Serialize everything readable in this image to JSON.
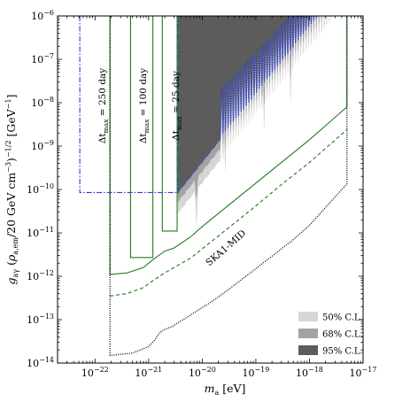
{
  "chart_data": {
    "type": "line",
    "xlabel": "m_a [eV]",
    "ylabel": "g_aγ (ρ_a,em/20 GeV cm⁻³)^−1/2 [GeV⁻¹]",
    "xscale": "log",
    "yscale": "log",
    "xlim": [
      2e-23,
      1e-17
    ],
    "ylim": [
      1e-14,
      1e-06
    ],
    "x_ticks": [
      {
        "mant": "10",
        "exp": "−22",
        "value": 1e-22
      },
      {
        "mant": "10",
        "exp": "−21",
        "value": 1e-21
      },
      {
        "mant": "10",
        "exp": "−20",
        "value": 1e-20
      },
      {
        "mant": "10",
        "exp": "−19",
        "value": 1e-19
      },
      {
        "mant": "10",
        "exp": "−18",
        "value": 1e-18
      },
      {
        "mant": "10",
        "exp": "−17",
        "value": 1e-17
      }
    ],
    "y_ticks": [
      {
        "mant": "10",
        "exp": "−14",
        "value": 1e-14
      },
      {
        "mant": "10",
        "exp": "−13",
        "value": 1e-13
      },
      {
        "mant": "10",
        "exp": "−12",
        "value": 1e-12
      },
      {
        "mant": "10",
        "exp": "−11",
        "value": 1e-11
      },
      {
        "mant": "10",
        "exp": "−10",
        "value": 1e-10
      },
      {
        "mant": "10",
        "exp": "−9",
        "value": 1e-09
      },
      {
        "mant": "10",
        "exp": "−8",
        "value": 1e-08
      },
      {
        "mant": "10",
        "exp": "−7",
        "value": 1e-07
      },
      {
        "mant": "10",
        "exp": "−6",
        "value": 1e-06
      }
    ],
    "series": [
      {
        "label": "Δt_max = 250 day",
        "style": "dashdot",
        "color": "#2b3fd6",
        "x": [
          5.2e-23,
          5.2e-23,
          3.5e-21,
          3.5e-21
        ],
        "y": [
          1e-06,
          8.5e-11,
          8.5e-11,
          1e-06
        ]
      },
      {
        "label": "Δt_max = 100 day",
        "style": "solid",
        "color": "#1e7a1e",
        "x": [
          4.6e-22,
          4.6e-22,
          1.2e-21,
          1.2e-21
        ],
        "y": [
          1e-06,
          2.7e-12,
          2.7e-12,
          1e-06
        ]
      },
      {
        "label": "Δt_max = 25 day",
        "style": "solid",
        "color": "#1e7a1e",
        "x": [
          1.8e-21,
          1.8e-21,
          3.4e-21,
          3.4e-21
        ],
        "y": [
          1e-06,
          1.1e-11,
          1.1e-11,
          1e-06
        ]
      },
      {
        "label": "Δt_max = 250 day",
        "style": "solid",
        "color": "#1e7a1e",
        "x": [
          1.9e-22,
          1.9e-22,
          4e-22,
          8e-22,
          1.3e-21,
          2e-21,
          3e-21,
          6e-21,
          1e-20,
          2e-20,
          5e-20,
          1e-19,
          3e-19,
          1e-18,
          5e-18,
          5e-18
        ],
        "y": [
          1e-06,
          1.1e-12,
          1.2e-12,
          1.6e-12,
          2.6e-12,
          3.8e-12,
          4.5e-12,
          8e-12,
          1.4e-11,
          2.8e-11,
          7e-11,
          1.4e-10,
          4.2e-10,
          1.4e-09,
          8e-09,
          1e-06
        ]
      },
      {
        "label": "",
        "style": "dashed",
        "color": "#1e7a1e",
        "x": [
          1.9e-22,
          4e-22,
          8e-22,
          1.3e-21,
          2e-21,
          3e-21,
          6e-21,
          1e-20,
          2e-20,
          5e-20,
          1e-19,
          3e-19,
          1e-18,
          5e-18
        ],
        "y": [
          3.5e-13,
          4e-13,
          5.5e-13,
          8.5e-13,
          1.2e-12,
          1.6e-12,
          2.6e-12,
          4.3e-12,
          8.5e-12,
          2.1e-11,
          4.2e-11,
          1.3e-10,
          4.2e-10,
          2.4e-09
        ]
      },
      {
        "label": "SKA1-MID",
        "style": "dotted",
        "color": "#000000",
        "x": [
          1.9e-22,
          1.9e-22,
          5e-22,
          1e-21,
          1.3e-21,
          1.6e-21,
          2e-21,
          2.8e-21,
          3.5e-21,
          5e-21,
          8e-21,
          1.5e-20,
          3e-20,
          1e-19,
          5e-19,
          1e-18,
          5e-18,
          5e-18
        ],
        "y": [
          1e-06,
          1.5e-14,
          1.7e-14,
          2.4e-14,
          3.4e-14,
          5e-14,
          6e-14,
          7e-14,
          8.5e-14,
          1.1e-13,
          1.6e-13,
          2.6e-13,
          4.8e-13,
          1.5e-12,
          7e-12,
          1.5e-11,
          1.35e-10,
          1e-06
        ]
      }
    ],
    "bands": [
      {
        "label": "50% C.L.",
        "color": "#d6d6d6",
        "x_start": 3.5e-21
      },
      {
        "label": "68% C.L.",
        "color": "#a3a3a3",
        "x_start": 3.5e-21
      },
      {
        "label": "95% C.L.",
        "color": "#5c5c5c",
        "x_start": 3.5e-21,
        "y_at_start": 8.5e-11
      }
    ],
    "annotations": [
      {
        "text": "SKA1-MID"
      },
      {
        "text_prefix": "Δt",
        "sub": "max",
        "text_suffix": " = 250 day"
      },
      {
        "text_prefix": "Δt",
        "sub": "max",
        "text_suffix": " = 100 day"
      },
      {
        "text_prefix": "Δt",
        "sub": "max",
        "text_suffix": " = 25 day"
      }
    ],
    "legend_position": "bottom-right"
  }
}
